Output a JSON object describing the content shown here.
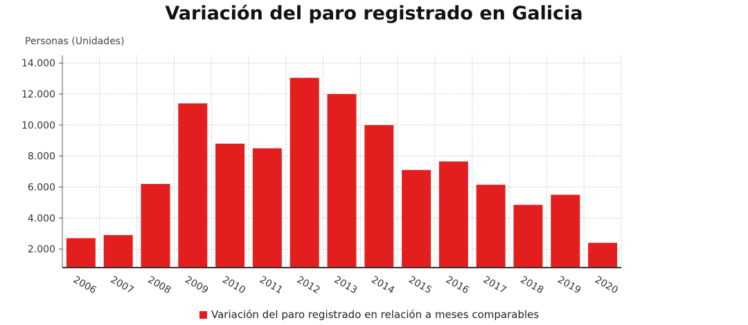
{
  "chart_data": {
    "type": "bar",
    "title": "Variación del paro registrado en Galicia",
    "ylabel": "Personas (Unidades)",
    "xlabel": "",
    "categories": [
      "2006",
      "2007",
      "2008",
      "2009",
      "2010",
      "2011",
      "2012",
      "2013",
      "2014",
      "2015",
      "2016",
      "2017",
      "2018",
      "2019",
      "2020"
    ],
    "series": [
      {
        "name": "Variación del paro registrado en relación a meses comparables",
        "color": "#e31e1e",
        "values": [
          2700,
          2900,
          6200,
          11400,
          8800,
          8500,
          13050,
          12000,
          10000,
          7100,
          7650,
          6150,
          4850,
          5500,
          2400
        ]
      }
    ],
    "ylim": [
      800,
      14500
    ],
    "yticks": [
      2000,
      4000,
      6000,
      8000,
      10000,
      12000,
      14000
    ],
    "ytick_labels": [
      "2.000",
      "4.000",
      "6.000",
      "8.000",
      "10.000",
      "12.000",
      "14.000"
    ],
    "grid": true,
    "legend_position": "bottom"
  }
}
